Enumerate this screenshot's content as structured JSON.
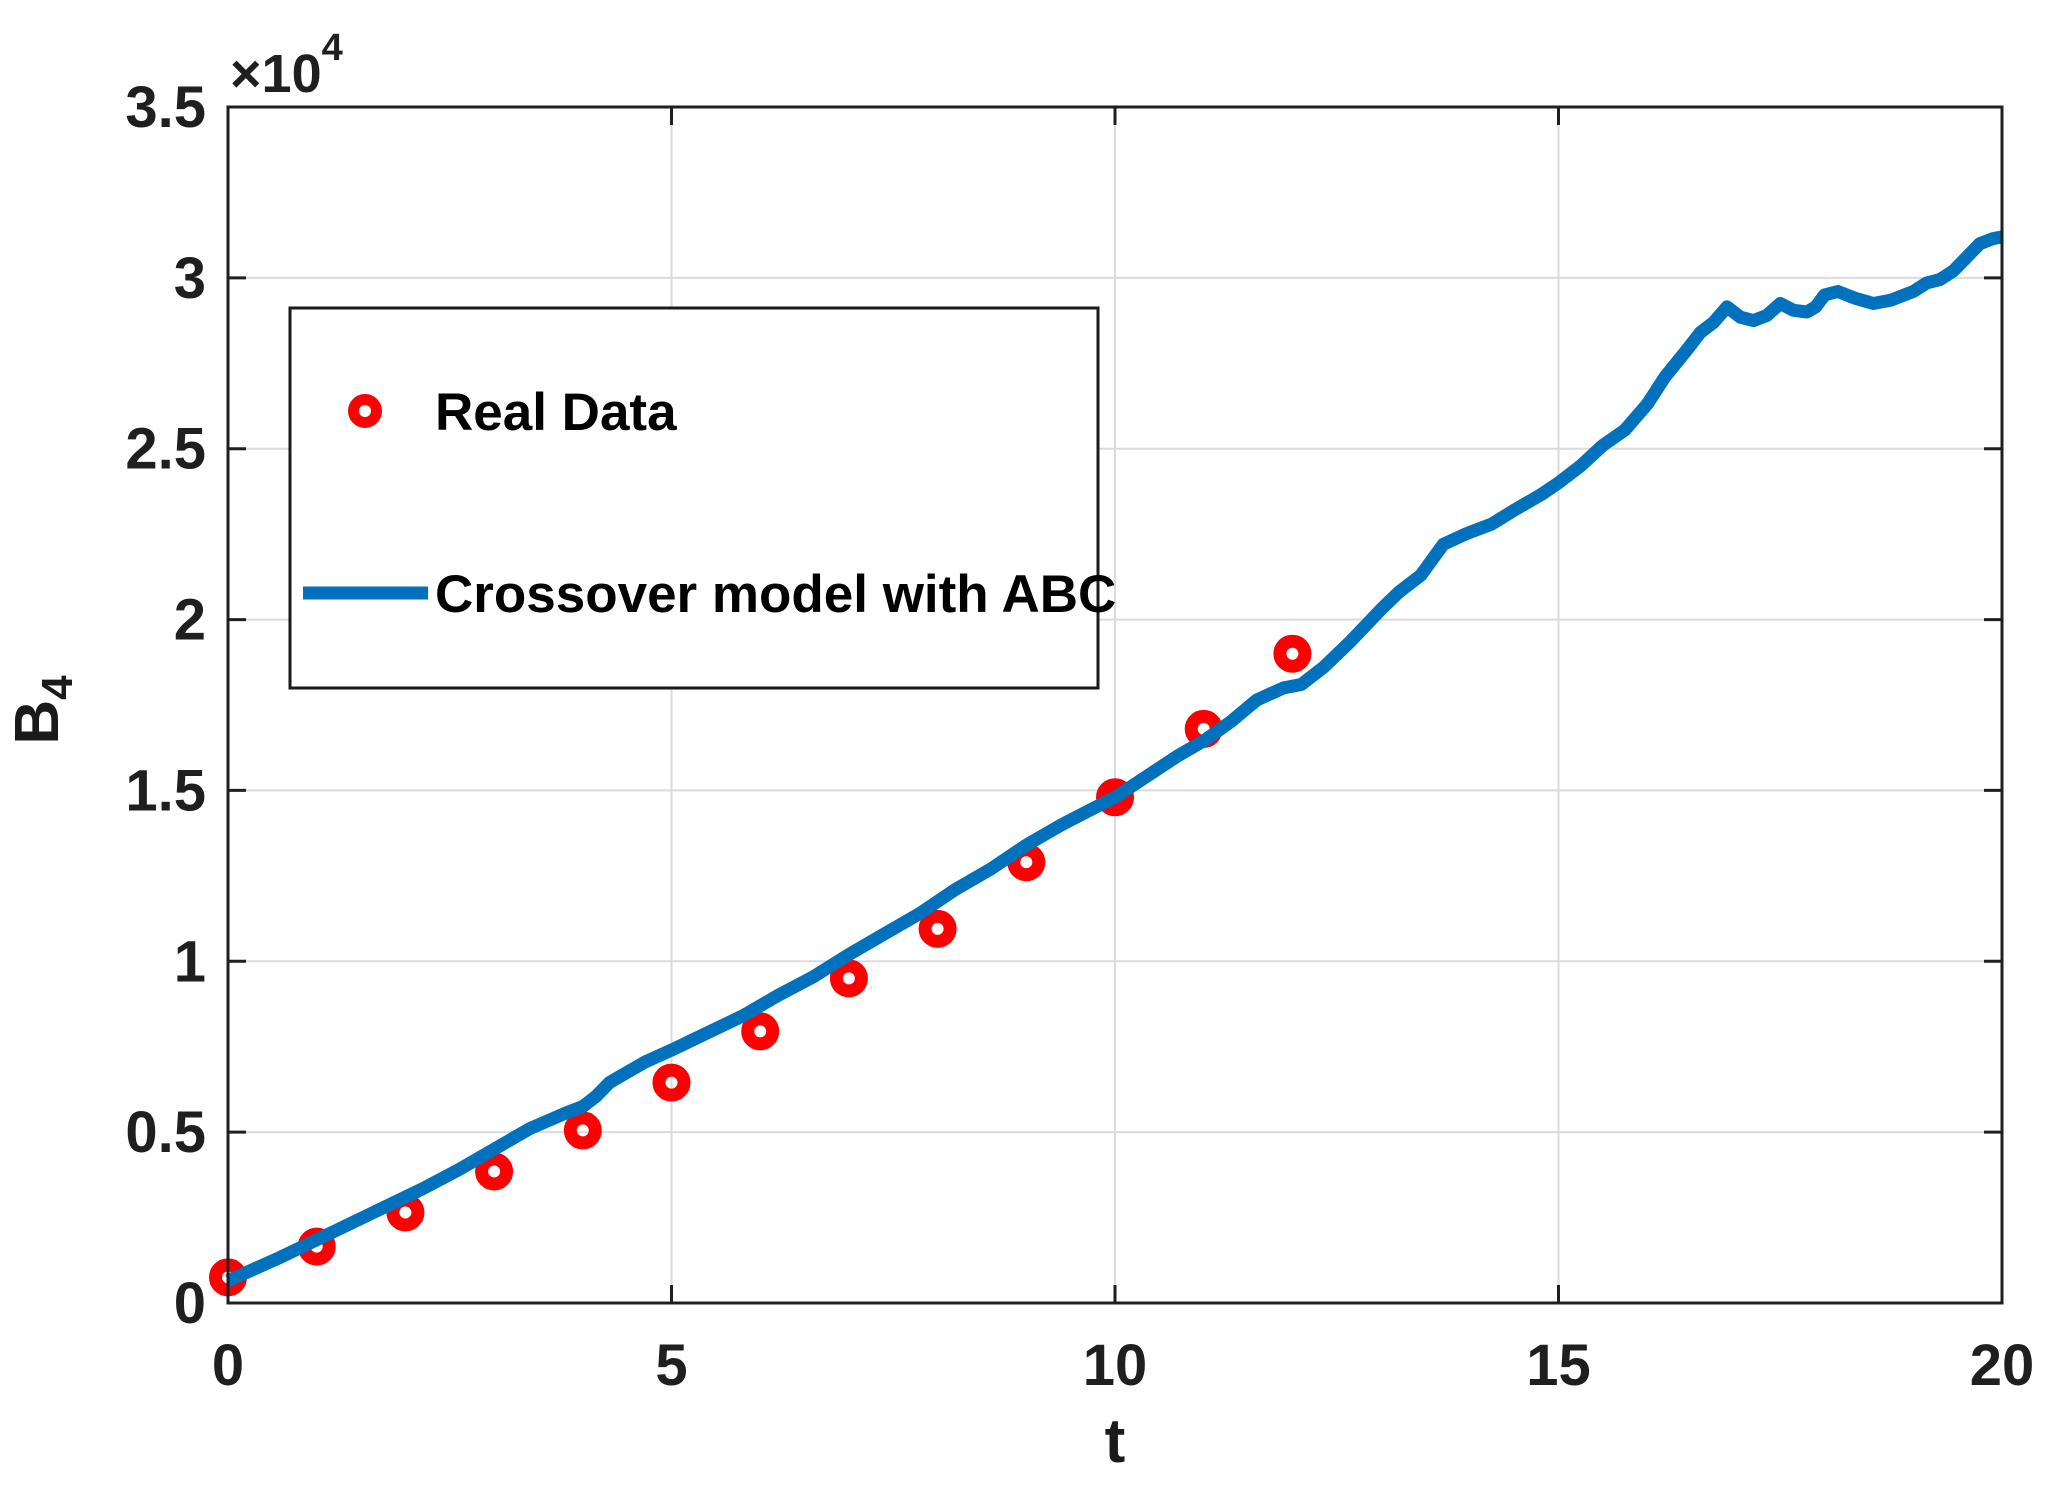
{
  "figure": {
    "xlabel": "t",
    "ylabel_base": "B",
    "ylabel_sub": "4",
    "multiplier_base": "×10",
    "multiplier_exp": "4",
    "legend": [
      {
        "label": "Real Data",
        "marker": "red-open-circle",
        "color": "#ff0000"
      },
      {
        "label": "Crossover model with ABC",
        "marker": "blue-line",
        "color": "#0072bd"
      }
    ]
  },
  "chart_data": {
    "type": "scatter+line",
    "title": "",
    "xlabel": "t",
    "ylabel": "B_4",
    "y_axis_multiplier": "×10^4",
    "grid": true,
    "legend_position": "upper-left-inside",
    "xlim": [
      0,
      20
    ],
    "ylim": [
      0,
      35000
    ],
    "x_ticks": [
      0,
      5,
      10,
      15,
      20
    ],
    "x_tick_labels": [
      "0",
      "5",
      "10",
      "15",
      "20"
    ],
    "y_ticks": [
      0,
      5000,
      10000,
      15000,
      20000,
      25000,
      30000,
      35000
    ],
    "y_tick_labels": [
      "0",
      "0.5",
      "1",
      "1.5",
      "2",
      "2.5",
      "3",
      "3.5"
    ],
    "series": [
      {
        "name": "Real Data",
        "type": "scatter",
        "marker": "open-circle",
        "color": "#ff0000",
        "x": [
          0,
          1,
          2,
          3,
          4,
          5,
          6,
          7,
          8,
          9,
          10,
          11,
          12
        ],
        "y": [
          750,
          1650,
          2650,
          3850,
          5050,
          6450,
          7950,
          9500,
          10950,
          12900,
          14800,
          16800,
          19000
        ]
      },
      {
        "name": "Crossover model with ABC",
        "type": "line",
        "color": "#0072bd",
        "line_width": 13,
        "x": [
          0,
          0.3,
          0.6,
          1,
          1.4,
          1.8,
          2.2,
          2.6,
          3,
          3.4,
          3.8,
          4,
          4.15,
          4.3,
          4.5,
          4.7,
          5,
          5.4,
          5.8,
          6.2,
          6.6,
          7,
          7.4,
          7.8,
          8.2,
          8.6,
          9,
          9.4,
          9.7,
          10,
          10.35,
          10.7,
          11,
          11.3,
          11.6,
          11.9,
          12.1,
          12.35,
          12.65,
          13,
          13.2,
          13.45,
          13.7,
          13.95,
          14.25,
          14.5,
          14.8,
          15,
          15.25,
          15.5,
          15.75,
          16,
          16.2,
          16.45,
          16.6,
          16.75,
          16.9,
          17.05,
          17.2,
          17.35,
          17.5,
          17.65,
          17.8,
          17.9,
          18,
          18.15,
          18.35,
          18.55,
          18.75,
          19,
          19.15,
          19.3,
          19.45,
          19.6,
          19.75,
          19.9,
          20
        ],
        "y": [
          650,
          1000,
          1350,
          1850,
          2350,
          2850,
          3350,
          3900,
          4500,
          5100,
          5550,
          5750,
          6050,
          6450,
          6750,
          7050,
          7400,
          7900,
          8400,
          9000,
          9550,
          10200,
          10800,
          11400,
          12100,
          12700,
          13400,
          14000,
          14400,
          14800,
          15400,
          16000,
          16450,
          17000,
          17650,
          18000,
          18100,
          18600,
          19350,
          20300,
          20800,
          21300,
          22200,
          22500,
          22800,
          23200,
          23650,
          24000,
          24500,
          25100,
          25550,
          26300,
          27100,
          27900,
          28400,
          28700,
          29150,
          28850,
          28750,
          28900,
          29250,
          29050,
          29000,
          29150,
          29500,
          29600,
          29400,
          29250,
          29350,
          29600,
          29850,
          29950,
          30200,
          30600,
          31000,
          31150,
          31200
        ]
      }
    ]
  }
}
